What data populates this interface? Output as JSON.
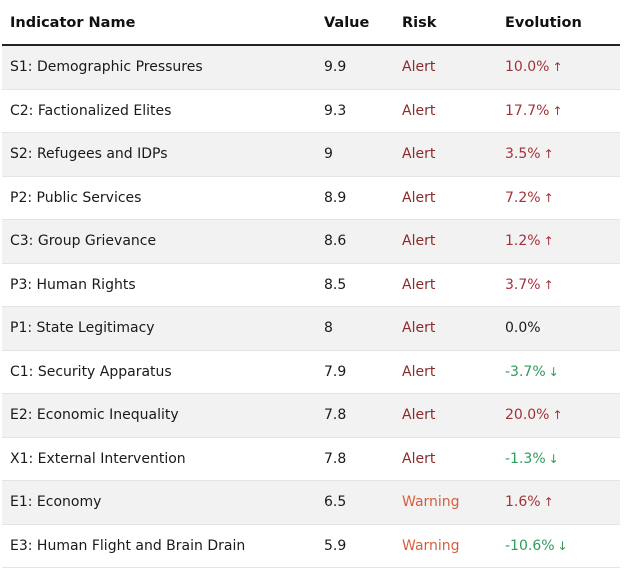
{
  "columns": {
    "name": "Indicator Name",
    "value": "Value",
    "risk": "Risk",
    "evolution": "Evolution"
  },
  "colors": {
    "alert": "#8b2a2a",
    "warning": "#d4603e",
    "increase": "#a3323c",
    "decrease": "#2e9c5c"
  },
  "rows": [
    {
      "name": "S1: Demographic Pressures",
      "value": "9.9",
      "risk": "Alert",
      "evolution": "10.0%",
      "trend": "up",
      "arrow": "↑"
    },
    {
      "name": "C2: Factionalized Elites",
      "value": "9.3",
      "risk": "Alert",
      "evolution": "17.7%",
      "trend": "up",
      "arrow": "↑"
    },
    {
      "name": "S2: Refugees and IDPs",
      "value": "9",
      "risk": "Alert",
      "evolution": "3.5%",
      "trend": "up",
      "arrow": "↑"
    },
    {
      "name": "P2: Public Services",
      "value": "8.9",
      "risk": "Alert",
      "evolution": "7.2%",
      "trend": "up",
      "arrow": "↑"
    },
    {
      "name": "C3: Group Grievance",
      "value": "8.6",
      "risk": "Alert",
      "evolution": "1.2%",
      "trend": "up",
      "arrow": "↑"
    },
    {
      "name": "P3: Human Rights",
      "value": "8.5",
      "risk": "Alert",
      "evolution": "3.7%",
      "trend": "up",
      "arrow": "↑"
    },
    {
      "name": "P1: State Legitimacy",
      "value": "8",
      "risk": "Alert",
      "evolution": "0.0%",
      "trend": "neutral",
      "arrow": ""
    },
    {
      "name": "C1: Security Apparatus",
      "value": "7.9",
      "risk": "Alert",
      "evolution": "-3.7%",
      "trend": "down",
      "arrow": "↓"
    },
    {
      "name": "E2: Economic Inequality",
      "value": "7.8",
      "risk": "Alert",
      "evolution": "20.0%",
      "trend": "up",
      "arrow": "↑"
    },
    {
      "name": "X1: External Intervention",
      "value": "7.8",
      "risk": "Alert",
      "evolution": "-1.3%",
      "trend": "down",
      "arrow": "↓"
    },
    {
      "name": "E1: Economy",
      "value": "6.5",
      "risk": "Warning",
      "evolution": "1.6%",
      "trend": "up",
      "arrow": "↑"
    },
    {
      "name": "E3: Human Flight and Brain Drain",
      "value": "5.9",
      "risk": "Warning",
      "evolution": "-10.6%",
      "trend": "down",
      "arrow": "↓"
    }
  ]
}
